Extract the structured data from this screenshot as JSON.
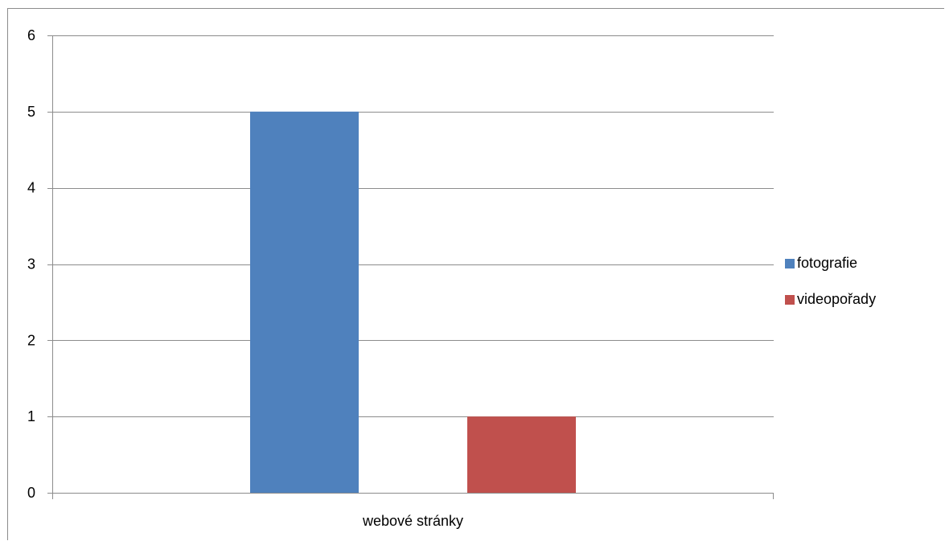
{
  "chart_data": {
    "type": "bar",
    "categories": [
      "webové stránky"
    ],
    "series": [
      {
        "name": "fotografie",
        "values": [
          5
        ],
        "color": "#4f81bd"
      },
      {
        "name": "videopořady",
        "values": [
          1
        ],
        "color": "#c0504d"
      }
    ],
    "ylim": [
      0,
      6
    ],
    "yticks": [
      "0",
      "1",
      "2",
      "3",
      "4",
      "5",
      "6"
    ],
    "grid": true,
    "legend_position": "right"
  }
}
